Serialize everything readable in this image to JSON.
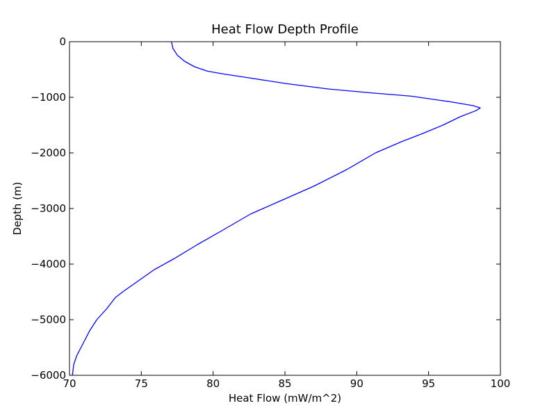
{
  "chart_data": {
    "type": "line",
    "title": "Heat Flow Depth Profile",
    "xlabel": "Heat Flow (mW/m^2)",
    "ylabel": "Depth (m)",
    "xlim": [
      70,
      100
    ],
    "ylim": [
      -6000,
      0
    ],
    "xticks": [
      70,
      75,
      80,
      85,
      90,
      95,
      100
    ],
    "yticks": [
      0,
      -1000,
      -2000,
      -3000,
      -4000,
      -5000,
      -6000
    ],
    "xtick_labels": [
      "70",
      "75",
      "80",
      "85",
      "90",
      "95",
      "100"
    ],
    "ytick_labels": [
      "0",
      "−1000",
      "−2000",
      "−3000",
      "−4000",
      "−5000",
      "−6000"
    ],
    "grid": false,
    "legend": false,
    "series": [
      {
        "color": "#0000ff",
        "x": [
          77.1,
          77.2,
          77.5,
          78.0,
          78.7,
          79.6,
          80.7,
          82.5,
          85.0,
          88.0,
          91.0,
          93.8,
          96.5,
          98.1,
          98.6,
          98.3,
          97.2,
          96.0,
          94.6,
          93.1,
          91.3,
          89.3,
          87.0,
          84.8,
          82.6,
          80.6,
          78.9,
          77.3,
          75.9,
          74.8,
          73.7,
          73.2,
          72.6,
          71.9,
          71.4,
          71.0,
          70.5,
          70.3,
          70.25,
          70.2
        ],
        "y": [
          0,
          -120,
          -240,
          -350,
          -450,
          -530,
          -580,
          -650,
          -750,
          -850,
          -920,
          -980,
          -1080,
          -1150,
          -1190,
          -1240,
          -1350,
          -1500,
          -1650,
          -1800,
          -2000,
          -2300,
          -2600,
          -2850,
          -3100,
          -3400,
          -3650,
          -3900,
          -4100,
          -4300,
          -4500,
          -4600,
          -4800,
          -5000,
          -5200,
          -5400,
          -5650,
          -5800,
          -5900,
          -6000
        ]
      }
    ]
  }
}
